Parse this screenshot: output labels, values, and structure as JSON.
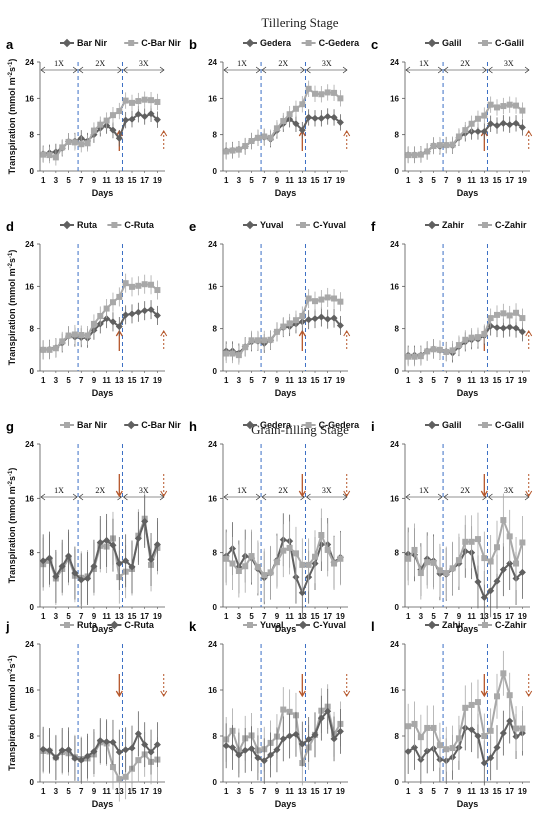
{
  "stage_titles": [
    "Tillering Stage",
    "Grain-filling Stage"
  ],
  "colors": {
    "dark": "#606060",
    "light": "#a8a8a8",
    "blue_dash": "#3b6fc4",
    "arrow": "#b5562a"
  },
  "chart_data": [
    {
      "type": "line",
      "panel": "a",
      "stage": "Tillering Stage",
      "series": [
        {
          "name": "Bar Nir",
          "values": [
            3.8,
            4.0,
            4.2,
            5.0,
            6.5,
            6.6,
            7.2,
            6.6,
            8.0,
            9.4,
            10.0,
            9.0,
            7.2,
            11.2,
            11.4,
            12.5,
            12.0,
            12.6,
            11.3
          ]
        },
        {
          "name": "C-Bar Nir",
          "values": [
            3.6,
            3.5,
            3.0,
            5.2,
            6.4,
            6.3,
            5.9,
            6.1,
            8.9,
            10.2,
            11.1,
            12.3,
            13.2,
            15.5,
            15.0,
            15.4,
            15.7,
            15.6,
            15.2
          ]
        }
      ],
      "x": [
        1,
        2,
        3,
        4,
        5,
        6,
        7,
        8,
        9,
        10,
        11,
        12,
        13,
        14,
        15,
        16,
        17,
        18,
        19
      ],
      "ylim": [
        0,
        24
      ],
      "yticks": [
        0,
        8,
        16,
        24
      ]
    },
    {
      "type": "line",
      "panel": "b",
      "stage": "Tillering Stage",
      "series": [
        {
          "name": "Gedera",
          "values": [
            4.5,
            4.6,
            4.8,
            5.4,
            6.6,
            7.3,
            7.4,
            7.0,
            8.9,
            10.4,
            11.4,
            10.4,
            9.0,
            11.8,
            11.6,
            11.6,
            12.0,
            11.8,
            10.7
          ]
        },
        {
          "name": "C-Gedera",
          "values": [
            4.3,
            4.5,
            4.7,
            5.5,
            6.6,
            7.3,
            7.6,
            7.3,
            9.4,
            11.0,
            12.5,
            13.7,
            14.7,
            18.1,
            17.0,
            16.9,
            17.3,
            17.2,
            16.0
          ]
        }
      ],
      "x": [
        1,
        2,
        3,
        4,
        5,
        6,
        7,
        8,
        9,
        10,
        11,
        12,
        13,
        14,
        15,
        16,
        17,
        18,
        19
      ],
      "ylim": [
        0,
        24
      ],
      "yticks": [
        0,
        8,
        16,
        24
      ]
    },
    {
      "type": "line",
      "panel": "c",
      "stage": "Tillering Stage",
      "series": [
        {
          "name": "Galil",
          "values": [
            3.6,
            3.6,
            3.7,
            4.3,
            5.6,
            5.4,
            5.7,
            5.6,
            7.3,
            8.3,
            8.7,
            8.7,
            8.7,
            10.4,
            10.0,
            10.5,
            10.2,
            10.5,
            9.6
          ]
        },
        {
          "name": "C-Galil",
          "values": [
            3.5,
            3.5,
            3.6,
            4.3,
            5.5,
            5.7,
            5.7,
            5.8,
            7.6,
            9.0,
            10.4,
            11.5,
            12.2,
            14.6,
            14.0,
            14.3,
            14.6,
            14.4,
            13.3
          ]
        }
      ],
      "x": [
        1,
        2,
        3,
        4,
        5,
        6,
        7,
        8,
        9,
        10,
        11,
        12,
        13,
        14,
        15,
        16,
        17,
        18,
        19
      ],
      "ylim": [
        0,
        24
      ],
      "yticks": [
        0,
        8,
        16,
        24
      ]
    },
    {
      "type": "line",
      "panel": "d",
      "stage": "Tillering Stage",
      "series": [
        {
          "name": "Ruta",
          "values": [
            4.0,
            4.1,
            4.4,
            5.3,
            6.6,
            6.4,
            6.3,
            6.2,
            7.7,
            8.9,
            9.9,
            9.3,
            8.4,
            10.6,
            10.8,
            11.1,
            11.4,
            11.6,
            10.5
          ]
        },
        {
          "name": "C-Ruta",
          "values": [
            4.0,
            4.0,
            4.3,
            5.6,
            6.7,
            6.9,
            6.8,
            6.7,
            8.9,
            10.4,
            11.8,
            13.0,
            14.0,
            16.6,
            15.9,
            16.1,
            16.4,
            16.3,
            15.3
          ]
        }
      ],
      "x": [
        1,
        2,
        3,
        4,
        5,
        6,
        7,
        8,
        9,
        10,
        11,
        12,
        13,
        14,
        15,
        16,
        17,
        18,
        19
      ],
      "ylim": [
        0,
        24
      ],
      "yticks": [
        0,
        8,
        16,
        24
      ]
    },
    {
      "type": "line",
      "panel": "e",
      "stage": "Tillering Stage",
      "series": [
        {
          "name": "Yuval",
          "values": [
            3.8,
            3.8,
            3.4,
            4.6,
            5.5,
            5.6,
            5.2,
            5.8,
            7.4,
            8.2,
            8.4,
            8.9,
            9.3,
            9.7,
            9.9,
            10.2,
            9.8,
            10.0,
            8.6
          ]
        },
        {
          "name": "C-Yuval",
          "values": [
            3.3,
            3.3,
            3.0,
            4.5,
            5.8,
            5.8,
            5.8,
            5.9,
            7.4,
            8.4,
            9.0,
            9.6,
            10.4,
            13.7,
            13.2,
            13.5,
            13.9,
            13.7,
            13.1
          ]
        }
      ],
      "x": [
        1,
        2,
        3,
        4,
        5,
        6,
        7,
        8,
        9,
        10,
        11,
        12,
        13,
        14,
        15,
        16,
        17,
        18,
        19
      ],
      "ylim": [
        0,
        24
      ],
      "yticks": [
        0,
        8,
        16,
        24
      ]
    },
    {
      "type": "line",
      "panel": "f",
      "stage": "Tillering Stage",
      "series": [
        {
          "name": "Zahir",
          "values": [
            3.0,
            3.0,
            3.0,
            3.8,
            4.2,
            3.9,
            3.7,
            3.4,
            4.6,
            5.5,
            5.9,
            6.0,
            6.7,
            8.5,
            8.2,
            8.1,
            8.3,
            8.1,
            7.4
          ]
        },
        {
          "name": "C-Zahir",
          "values": [
            2.7,
            2.7,
            2.8,
            3.7,
            4.1,
            4.0,
            3.6,
            3.9,
            4.9,
            5.9,
            6.3,
            6.4,
            7.0,
            10.0,
            10.6,
            10.9,
            10.5,
            11.0,
            10.0
          ]
        }
      ],
      "x": [
        1,
        2,
        3,
        4,
        5,
        6,
        7,
        8,
        9,
        10,
        11,
        12,
        13,
        14,
        15,
        16,
        17,
        18,
        19
      ],
      "ylim": [
        0,
        24
      ],
      "yticks": [
        0,
        8,
        16,
        24
      ]
    },
    {
      "type": "line",
      "panel": "g",
      "stage": "Grain-filling Stage",
      "series": [
        {
          "name": "Bar Nir",
          "values": [
            6.3,
            6.8,
            4.2,
            5.6,
            7.1,
            4.6,
            4.3,
            4.5,
            5.6,
            9.0,
            8.9,
            10.1,
            4.4,
            5.2,
            5.6,
            10.5,
            13.0,
            6.2,
            8.7
          ]
        },
        {
          "name": "C-Bar Nir",
          "values": [
            6.8,
            7.2,
            4.5,
            6.0,
            7.5,
            5.0,
            4.0,
            4.2,
            6.0,
            9.5,
            9.8,
            9.1,
            6.4,
            6.8,
            5.9,
            10.1,
            12.6,
            7.0,
            9.2
          ]
        }
      ],
      "x": [
        1,
        2,
        3,
        4,
        5,
        6,
        7,
        8,
        9,
        10,
        11,
        12,
        13,
        14,
        15,
        16,
        17,
        18,
        19
      ],
      "ylim": [
        0,
        24
      ],
      "yticks": [
        0,
        8,
        16,
        24
      ]
    },
    {
      "type": "line",
      "panel": "h",
      "stage": "Grain-filling Stage",
      "series": [
        {
          "name": "Gedera",
          "values": [
            7.5,
            8.6,
            5.9,
            7.5,
            7.2,
            5.6,
            4.3,
            5.0,
            6.9,
            9.9,
            9.7,
            4.4,
            2.1,
            4.4,
            6.4,
            9.2,
            9.2,
            6.6,
            7.3
          ]
        },
        {
          "name": "C-Gedera",
          "values": [
            7.1,
            6.4,
            5.3,
            6.0,
            7.5,
            5.9,
            4.7,
            5.1,
            6.6,
            8.3,
            8.7,
            7.9,
            6.2,
            6.2,
            7.4,
            10.6,
            8.4,
            6.4,
            7.1
          ]
        }
      ],
      "x": [
        1,
        2,
        3,
        4,
        5,
        6,
        7,
        8,
        9,
        10,
        11,
        12,
        13,
        14,
        15,
        16,
        17,
        18,
        19
      ],
      "ylim": [
        0,
        24
      ],
      "yticks": [
        0,
        8,
        16,
        24
      ]
    },
    {
      "type": "line",
      "panel": "i",
      "stage": "Grain-filling Stage",
      "series": [
        {
          "name": "Galil",
          "values": [
            7.8,
            7.7,
            5.5,
            7.1,
            6.8,
            4.9,
            4.8,
            5.6,
            6.4,
            8.2,
            8.0,
            3.7,
            1.4,
            2.4,
            3.8,
            5.5,
            6.4,
            4.2,
            5.1
          ]
        },
        {
          "name": "C-Galil",
          "values": [
            7.1,
            8.4,
            5.0,
            6.6,
            6.5,
            5.4,
            5.0,
            5.7,
            6.9,
            9.6,
            9.6,
            10.0,
            7.2,
            6.7,
            8.8,
            12.8,
            10.4,
            6.4,
            9.5
          ]
        }
      ],
      "x": [
        1,
        2,
        3,
        4,
        5,
        6,
        7,
        8,
        9,
        10,
        11,
        12,
        13,
        14,
        15,
        16,
        17,
        18,
        19
      ],
      "ylim": [
        0,
        24
      ],
      "yticks": [
        0,
        8,
        16,
        24
      ]
    },
    {
      "type": "line",
      "panel": "j",
      "stage": "Grain-filling Stage",
      "series": [
        {
          "name": "Ruta",
          "values": [
            5.4,
            5.3,
            4.3,
            5.2,
            5.0,
            4.3,
            4.0,
            4.1,
            4.8,
            6.9,
            6.7,
            2.6,
            0.5,
            0.9,
            2.3,
            3.8,
            4.8,
            3.5,
            3.9
          ]
        },
        {
          "name": "C-Ruta",
          "values": [
            5.7,
            5.5,
            4.2,
            5.5,
            5.6,
            4.1,
            3.8,
            4.5,
            5.3,
            7.2,
            7.0,
            6.9,
            5.2,
            5.6,
            5.9,
            8.4,
            6.5,
            5.2,
            6.5
          ]
        }
      ],
      "x": [
        1,
        2,
        3,
        4,
        5,
        6,
        7,
        8,
        9,
        10,
        11,
        12,
        13,
        14,
        15,
        16,
        17,
        18,
        19
      ],
      "ylim": [
        0,
        24
      ],
      "yticks": [
        0,
        8,
        16,
        24
      ]
    },
    {
      "type": "line",
      "panel": "k",
      "stage": "Grain-filling Stage",
      "series": [
        {
          "name": "Yuval",
          "values": [
            7.4,
            8.9,
            5.4,
            7.6,
            8.1,
            5.5,
            5.7,
            6.8,
            7.9,
            12.6,
            12.2,
            11.6,
            3.3,
            6.0,
            8.2,
            12.4,
            13.1,
            8.3,
            10.1
          ]
        },
        {
          "name": "C-Yuval",
          "values": [
            6.3,
            6.0,
            4.7,
            5.5,
            5.8,
            4.2,
            3.7,
            4.7,
            5.6,
            7.5,
            8.0,
            8.3,
            6.6,
            7.4,
            8.2,
            11.1,
            12.3,
            7.5,
            8.8
          ]
        }
      ],
      "x": [
        1,
        2,
        3,
        4,
        5,
        6,
        7,
        8,
        9,
        10,
        11,
        12,
        13,
        14,
        15,
        16,
        17,
        18,
        19
      ],
      "ylim": [
        0,
        24
      ],
      "yticks": [
        0,
        8,
        16,
        24
      ]
    },
    {
      "type": "line",
      "panel": "l",
      "stage": "Grain-filling Stage",
      "series": [
        {
          "name": "Zahir",
          "values": [
            5.3,
            6.0,
            3.9,
            5.4,
            5.8,
            3.9,
            3.7,
            4.3,
            6.0,
            9.4,
            9.1,
            8.0,
            3.3,
            4.2,
            6.0,
            8.5,
            10.6,
            7.9,
            8.5
          ]
        },
        {
          "name": "C-Zahir",
          "values": [
            9.7,
            10.1,
            7.8,
            9.4,
            9.4,
            6.4,
            5.7,
            5.9,
            7.6,
            12.9,
            13.4,
            13.9,
            8.0,
            8.9,
            14.9,
            18.9,
            15.1,
            9.3,
            9.3
          ]
        }
      ],
      "x": [
        1,
        2,
        3,
        4,
        5,
        6,
        7,
        8,
        9,
        10,
        11,
        12,
        13,
        14,
        15,
        16,
        17,
        18,
        19
      ],
      "ylim": [
        0,
        24
      ],
      "yticks": [
        0,
        8,
        16,
        24
      ]
    }
  ],
  "panel_labels": [
    "a",
    "b",
    "c",
    "d",
    "e",
    "f",
    "g",
    "h",
    "i",
    "j",
    "k",
    "l"
  ],
  "y_axis_label": "Transpiration (mmol m",
  "y_axis_sup1": "-2",
  "y_axis_mid": "s",
  "y_axis_sup2": "-1",
  "y_axis_end": ")",
  "x_axis_label": "Days",
  "x_tick_labels": [
    "1",
    "3",
    "5",
    "7",
    "9",
    "11",
    "13",
    "15",
    "17",
    "19"
  ],
  "y_tick_labels": [
    "0",
    "8",
    "16",
    "24"
  ],
  "phase_labels": [
    "1X",
    "2X",
    "3X"
  ],
  "legend_marker_dark": "diamond",
  "legend_marker_light": "square"
}
